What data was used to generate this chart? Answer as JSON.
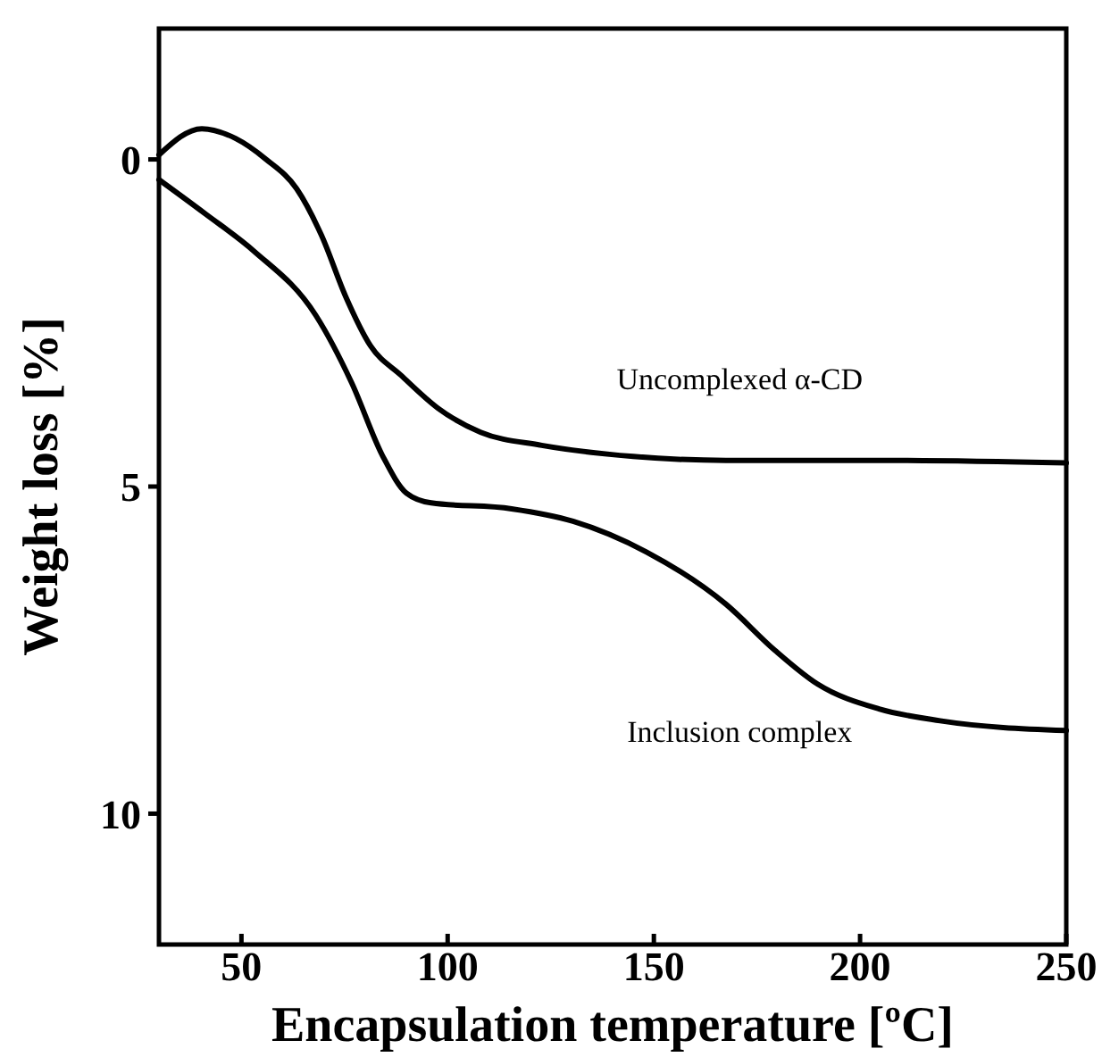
{
  "chart_data": {
    "type": "line",
    "xlabel": "Encapsulation temperature [ºC]",
    "ylabel": "Weight loss [%]",
    "xlim": [
      30,
      250
    ],
    "xticks": [
      50,
      100,
      150,
      200,
      250
    ],
    "ylim": [
      12,
      -2
    ],
    "yticks": [
      0,
      5,
      10
    ],
    "grid": false,
    "marker": "none",
    "line_style": "solid",
    "series": [
      {
        "name": "Uncomplexed α-CD",
        "color": "#000000",
        "x": [
          30,
          40.4,
          48.6,
          56,
          63.4,
          69.4,
          75.3,
          81.3,
          88.7,
          97.6,
          108,
          122.8,
          145,
          167.5,
          204.7,
          250
        ],
        "values": [
          -0.07,
          -0.47,
          -0.32,
          0,
          0.45,
          1.16,
          2.1,
          2.85,
          3.3,
          3.8,
          4.17,
          4.37,
          4.54,
          4.6,
          4.6,
          4.64
        ]
      },
      {
        "name": "Inclusion complex",
        "color": "#000000",
        "x": [
          30,
          41.2,
          53,
          68,
          76.7,
          84.3,
          90,
          96,
          115.5,
          130.4,
          148.2,
          167.5,
          179.3,
          189.7,
          204.6,
          219.4,
          250
        ],
        "values": [
          0.31,
          0.83,
          1.4,
          2.38,
          3.41,
          4.54,
          5.1,
          5.25,
          5.34,
          5.53,
          6.0,
          6.8,
          7.5,
          8.02,
          8.4,
          8.58,
          8.73
        ]
      }
    ]
  }
}
